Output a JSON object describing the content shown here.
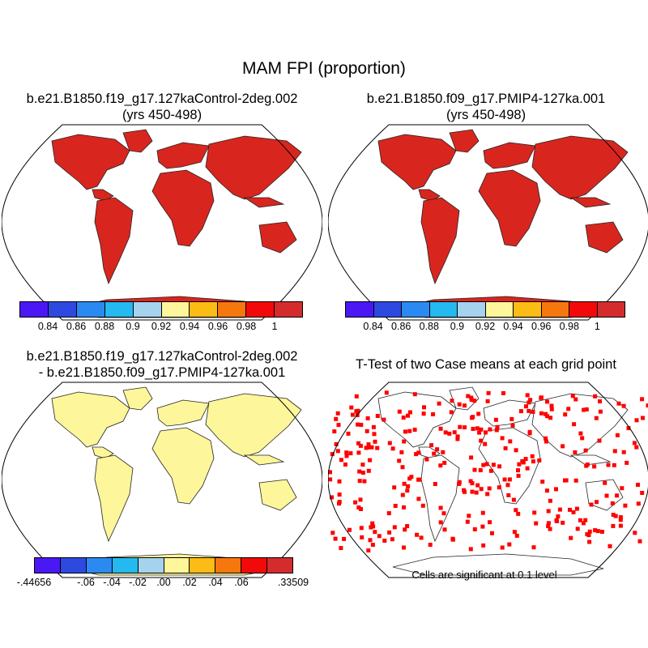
{
  "figure": {
    "title": "MAM FPI (proportion)"
  },
  "panels": {
    "top_left": {
      "title_line1": "b.e21.B1850.f19_g17.127kaControl-2deg.002",
      "title_line2": "(yrs 450-498)"
    },
    "top_right": {
      "title_line1": "b.e21.B1850.f09_g17.PMIP4-127ka.001",
      "title_line2": "(yrs 450-498)"
    },
    "bottom_left": {
      "title_line1": "b.e21.B1850.f19_g17.127kaControl-2deg.002",
      "title_line2": "- b.e21.B1850.f09_g17.PMIP4-127ka.001"
    },
    "bottom_right": {
      "title_line1": "T-Test of two Case means at each grid point",
      "note": "Cells are significant at 0.1 level"
    }
  },
  "colorbars": {
    "cases": {
      "colors": [
        "#4a18f5",
        "#2e49e0",
        "#2a8af2",
        "#24b9f0",
        "#a5d3ee",
        "#fdf69a",
        "#fcbc16",
        "#f7770f",
        "#f20a0a",
        "#d42c2c"
      ],
      "labels": [
        "0.84",
        "0.86",
        "0.88",
        "0.9",
        "0.92",
        "0.94",
        "0.96",
        "0.98",
        "1"
      ]
    },
    "difference": {
      "colors": [
        "#4a18f5",
        "#2e49e0",
        "#2a8af2",
        "#24b9f0",
        "#a5d3ee",
        "#fdf69a",
        "#fcbc16",
        "#f7770f",
        "#f20a0a",
        "#d42c2c"
      ],
      "labels": [
        "-.44656",
        "-.06",
        "-.04",
        "-.02",
        ".00",
        ".02",
        ".04",
        ".06",
        ".33509"
      ]
    }
  },
  "map_fill": {
    "case_land": "#d8261f",
    "difference_land": "#fdf69a",
    "ttest_significant": "#ff0000"
  }
}
